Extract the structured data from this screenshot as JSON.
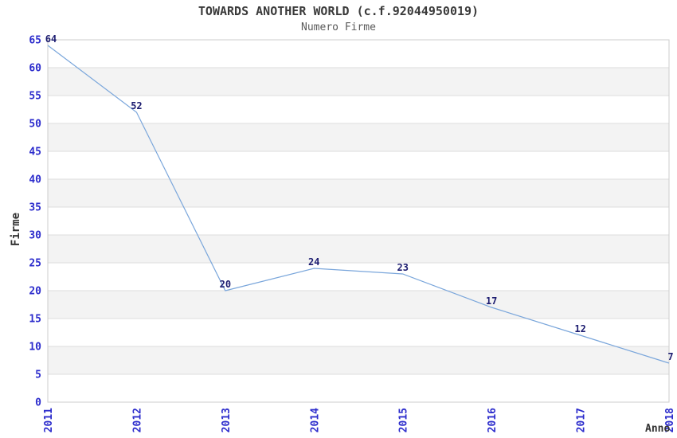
{
  "chart_data": {
    "type": "line",
    "title": "TOWARDS ANOTHER WORLD (c.f.92044950019)",
    "subtitle": "Numero Firme",
    "xlabel": "Anno",
    "ylabel": "Firme",
    "categories": [
      "2011",
      "2012",
      "2013",
      "2014",
      "2015",
      "2016",
      "2017",
      "2018"
    ],
    "values": [
      64,
      52,
      20,
      24,
      23,
      17,
      12,
      7
    ],
    "ylim": [
      0,
      65
    ],
    "ytick_step": 5,
    "grid": true,
    "banded_background": true,
    "legend": "none",
    "marker": "none",
    "colors": {
      "line": "#7aa6db",
      "tick_label": "#2c2ccc",
      "data_label": "#1c1c70",
      "band": "#f3f3f3",
      "grid": "#dddddd",
      "border": "#cccccc",
      "title": "#3a3a3a",
      "subtitle": "#5a5a5a",
      "axis_title": "#333333"
    }
  }
}
